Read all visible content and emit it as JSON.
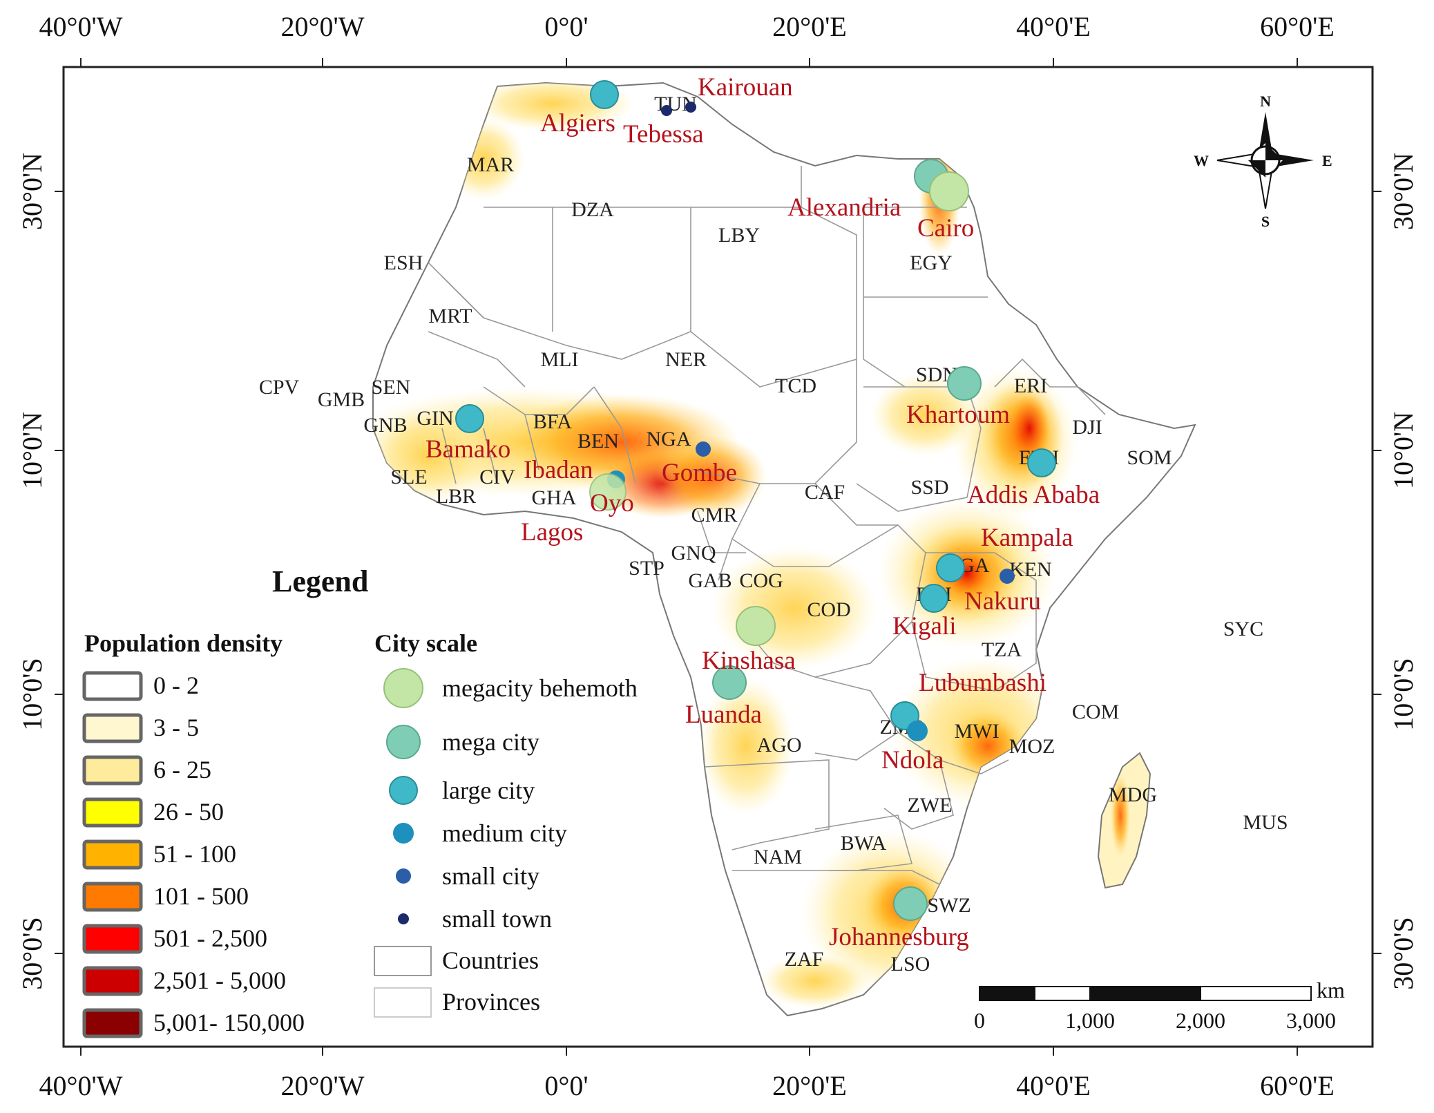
{
  "map": {
    "axis_labels": {
      "longitude": [
        "40°0'W",
        "20°0'W",
        "0°0'",
        "20°0'E",
        "40°0'E",
        "60°0'E"
      ],
      "latitude": [
        "30°0'N",
        "10°0'N",
        "10°0'S",
        "30°0'S"
      ]
    },
    "countries": [
      "TUN",
      "MAR",
      "DZA",
      "LBY",
      "EGY",
      "ESH",
      "MRT",
      "MLI",
      "NER",
      "TCD",
      "SDN",
      "ERI",
      "DJI",
      "SOM",
      "ETH",
      "SSD",
      "CAF",
      "CMR",
      "NGA",
      "BEN",
      "BFA",
      "GHA",
      "CIV",
      "LBR",
      "SLE",
      "GIN",
      "GNB",
      "GMB",
      "SEN",
      "CPV",
      "STP",
      "GNQ",
      "GAB",
      "COG",
      "COD",
      "UGA",
      "KEN",
      "BDI",
      "TZA",
      "SYC",
      "COM",
      "MWI",
      "MOZ",
      "MDG",
      "ZMB",
      "ZWE",
      "AGO",
      "NAM",
      "BWA",
      "ZAF",
      "SWZ",
      "LSO",
      "MUS"
    ],
    "cities": [
      {
        "name": "Kairouan",
        "scale": "small town"
      },
      {
        "name": "Algiers",
        "scale": "large city"
      },
      {
        "name": "Tebessa",
        "scale": "small town"
      },
      {
        "name": "Alexandria",
        "scale": "mega city"
      },
      {
        "name": "Cairo",
        "scale": "megacity behemoth"
      },
      {
        "name": "Khartoum",
        "scale": "mega city"
      },
      {
        "name": "Addis Ababa",
        "scale": "large city"
      },
      {
        "name": "Bamako",
        "scale": "large city"
      },
      {
        "name": "Ibadan",
        "scale": "medium city"
      },
      {
        "name": "Oyo",
        "scale": "megacity behemoth"
      },
      {
        "name": "Gombe",
        "scale": "small city"
      },
      {
        "name": "Lagos",
        "scale": "megacity behemoth"
      },
      {
        "name": "Kampala",
        "scale": "large city"
      },
      {
        "name": "Nakuru",
        "scale": "small city"
      },
      {
        "name": "Kigali",
        "scale": "large city"
      },
      {
        "name": "Kinshasa",
        "scale": "megacity behemoth"
      },
      {
        "name": "Luanda",
        "scale": "mega city"
      },
      {
        "name": "Lubumbashi",
        "scale": "large city"
      },
      {
        "name": "Ndola",
        "scale": "medium city"
      },
      {
        "name": "Johannesburg",
        "scale": "mega city"
      }
    ],
    "compass": {
      "n": "N",
      "s": "S",
      "e": "E",
      "w": "W"
    },
    "scale_bar": {
      "unit": "km",
      "ticks": [
        "0",
        "1,000",
        "2,000",
        "3,000"
      ]
    }
  },
  "legend": {
    "title": "Legend",
    "density_title": "Population density",
    "density_classes": [
      {
        "label": "0 - 2",
        "color": "#ffffff"
      },
      {
        "label": "3 - 5",
        "color": "#fff7cf"
      },
      {
        "label": "6 - 25",
        "color": "#ffeb9c"
      },
      {
        "label": "26 - 50",
        "color": "#ffff00"
      },
      {
        "label": "51 - 100",
        "color": "#ffb300"
      },
      {
        "label": "101 - 500",
        "color": "#ff7a00"
      },
      {
        "label": "501 - 2,500",
        "color": "#ff0000"
      },
      {
        "label": "2,501 - 5,000",
        "color": "#cc0000"
      },
      {
        "label": "5,001- 150,000",
        "color": "#8b0000"
      }
    ],
    "city_scale_title": "City scale",
    "city_scales": [
      {
        "label": "megacity behemoth",
        "color": "#c3e6a6"
      },
      {
        "label": "mega city",
        "color": "#7fcdb5"
      },
      {
        "label": "large city",
        "color": "#3fb9c8"
      },
      {
        "label": "medium city",
        "color": "#1e90bd"
      },
      {
        "label": "small city",
        "color": "#2a5ea8"
      },
      {
        "label": "small town",
        "color": "#1b2a6b"
      }
    ],
    "boundaries": [
      {
        "label": "Countries"
      },
      {
        "label": "Provinces"
      }
    ]
  }
}
